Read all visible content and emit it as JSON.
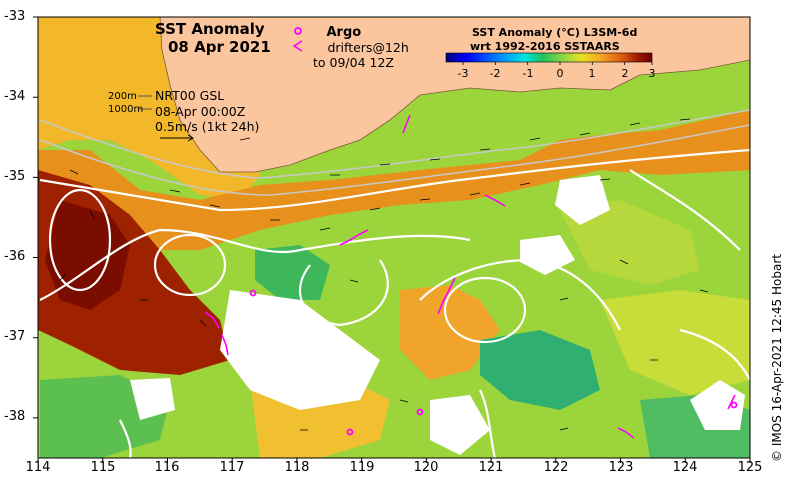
{
  "title": {
    "line1": "SST Anomaly",
    "line2": "08 Apr 2021"
  },
  "legend": {
    "argo_symbol": "o",
    "argo_label": "Argo",
    "drifter_symbol": "<",
    "drifter_line1": "drifters@12h",
    "drifter_line2": "to 09/04 12Z"
  },
  "currents": {
    "product": "NRT00 GSL",
    "time": "08-Apr 00:00Z",
    "scale_label": "0.5m/s (1kt 24h)",
    "contour_200": "200m",
    "contour_1000": "1000m"
  },
  "colorbar": {
    "title_line1": "SST Anomaly (°C) L3SM-6d",
    "title_line2": "wrt 1992-2016 SSTAARS",
    "ticks": [
      "-3",
      "-2",
      "-1",
      "0",
      "1",
      "2",
      "3"
    ],
    "range": [
      -3,
      3
    ],
    "colors": [
      "#00007f",
      "#0000ff",
      "#0080ff",
      "#00e5e5",
      "#20c060",
      "#8ed840",
      "#e8e020",
      "#f5a623",
      "#dd5e10",
      "#a01a00",
      "#6e0000"
    ]
  },
  "axes": {
    "lon_ticks": [
      "114",
      "115",
      "116",
      "117",
      "118",
      "119",
      "120",
      "121",
      "122",
      "123",
      "124",
      "125"
    ],
    "lat_ticks": [
      "-33",
      "-34",
      "-35",
      "-36",
      "-37",
      "-38"
    ],
    "lon_range": [
      114,
      125
    ],
    "lat_range": [
      -38.5,
      -33
    ]
  },
  "colors": {
    "land": "#fbc69e",
    "contour": "#c8c8c8",
    "streamline": "#ffffff",
    "argo": "#ff00ff",
    "drifter": "#ff00ff"
  },
  "credit": "© IMOS 16-Apr-2021 12:45 Hobart"
}
